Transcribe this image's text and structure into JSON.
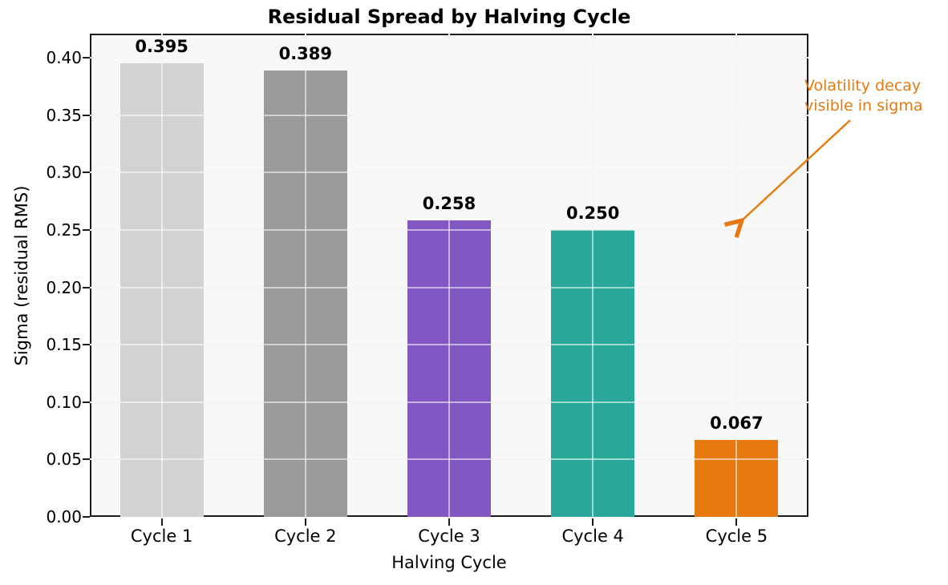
{
  "title": "Residual Spread by Halving Cycle",
  "chart_data": {
    "type": "bar",
    "title": "Residual Spread by Halving Cycle",
    "xlabel": "Halving Cycle",
    "ylabel": "Sigma (residual RMS)",
    "categories": [
      "Cycle 1",
      "Cycle 2",
      "Cycle 3",
      "Cycle 4",
      "Cycle 5"
    ],
    "values": [
      0.395,
      0.389,
      0.258,
      0.25,
      0.067
    ],
    "value_labels": [
      "0.395",
      "0.389",
      "0.258",
      "0.250",
      "0.067"
    ],
    "bar_colors": [
      "#d2d2d2",
      "#9a9a9a",
      "#8257c4",
      "#2aa79b",
      "#e5790e"
    ],
    "ylim": [
      0,
      0.421
    ],
    "yticks": [
      0.0,
      0.05,
      0.1,
      0.15,
      0.2,
      0.25,
      0.3,
      0.35,
      0.4
    ],
    "ytick_labels": [
      "0.00",
      "0.05",
      "0.10",
      "0.15",
      "0.20",
      "0.25",
      "0.30",
      "0.35",
      "0.40"
    ],
    "grid": true,
    "legend": null,
    "annotation": {
      "text": "Volatility decay\nvisible in sigma",
      "color": "#e5790e"
    }
  },
  "colors": {
    "plot_background": "#f8f8f8",
    "figure_background": "#ffffff",
    "axis": "#1b1b1b",
    "gridline": "#e7e7e7",
    "annotation_orange": "#e5790e"
  }
}
